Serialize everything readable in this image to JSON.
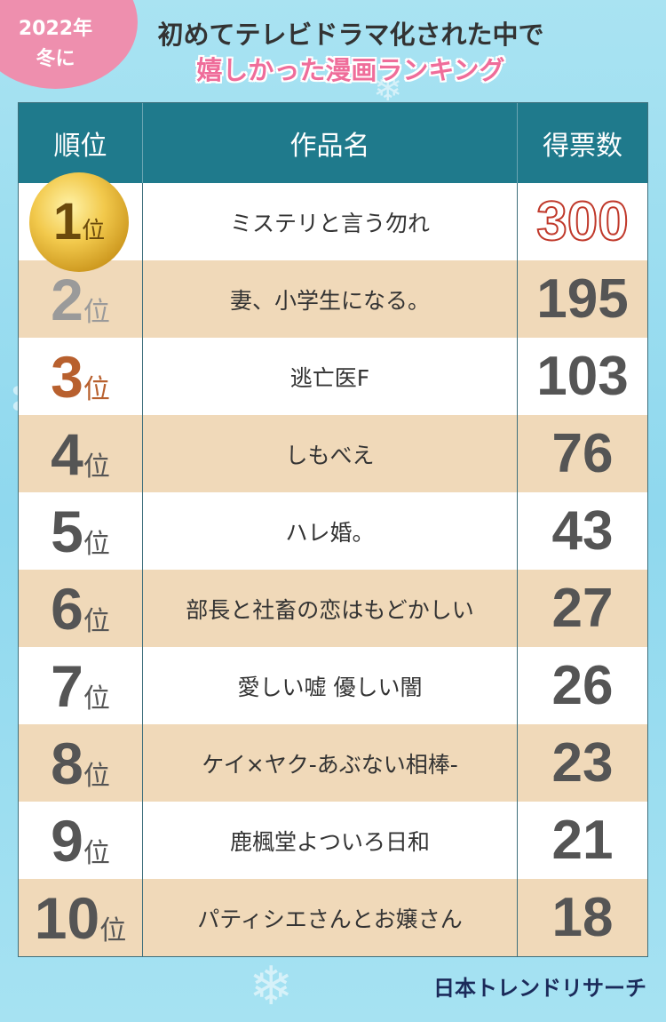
{
  "badge": {
    "year": "2022年",
    "season": "冬に"
  },
  "title": {
    "line1": "初めてテレビドラマ化された中で",
    "line2": "嬉しかった漫画ランキング"
  },
  "table": {
    "header": [
      "順位",
      "作品名",
      "得票数"
    ],
    "rank_suffix": "位",
    "rows": [
      {
        "rank": 1,
        "title": "ミステリと言う勿れ",
        "votes": 300
      },
      {
        "rank": 2,
        "title": "妻、小学生になる。",
        "votes": 195
      },
      {
        "rank": 3,
        "title": "逃亡医F",
        "votes": 103
      },
      {
        "rank": 4,
        "title": "しもべえ",
        "votes": 76
      },
      {
        "rank": 5,
        "title": "ハレ婚。",
        "votes": 43
      },
      {
        "rank": 6,
        "title": "部長と社畜の恋はもどかしい",
        "votes": 27
      },
      {
        "rank": 7,
        "title": "愛しい嘘 優しい闇",
        "votes": 26
      },
      {
        "rank": 8,
        "title": "ケイ×ヤク-あぶない相棒-",
        "votes": 23
      },
      {
        "rank": 9,
        "title": "鹿楓堂よついろ日和",
        "votes": 21
      },
      {
        "rank": 10,
        "title": "パティシエさんとお嬢さん",
        "votes": 18
      }
    ]
  },
  "footer": {
    "logo": "日本トレンドリサーチ"
  }
}
